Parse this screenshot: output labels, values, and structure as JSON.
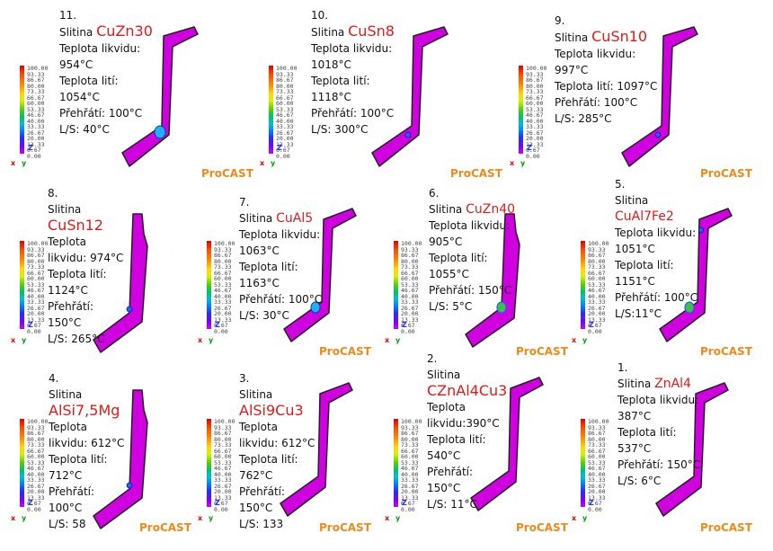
{
  "brand": "ProCAST",
  "ticks": [
    "100.00",
    "93.33",
    "86.67",
    "80.00",
    "73.33",
    "66.67",
    "60.00",
    "53.33",
    "46.67",
    "40.00",
    "33.33",
    "26.67",
    "20.00",
    "13.33",
    "6.67",
    "0.00"
  ],
  "axes": {
    "z": "Z",
    "x": "x",
    "y": "y"
  },
  "labels": {
    "slitina": "Slitina",
    "teplota": "Teplota",
    "likvidu": "likvidu:",
    "teplota_likvidu": "Teplota likvidu:",
    "teplota_liti": "Teplota lití:",
    "prehrati": "Přehřátí:"
  },
  "panels": [
    {
      "num": "11.",
      "alloy": "CuZn30",
      "liquidus": "954°C",
      "pour": "1054°C",
      "superheat": "100°C",
      "ls": "L/S: 40°C"
    },
    {
      "num": "10.",
      "alloy": "CuSn8",
      "liquidus": "1018°C",
      "pour": "1118°C",
      "superheat": "100°C",
      "ls": "L/S: 300°C"
    },
    {
      "num": "9.",
      "alloy": "CuSn10",
      "liquidus": "997°C",
      "pour": "1097°C",
      "superheat": "100°C",
      "ls": "L/S: 285°C"
    },
    {
      "num": "8.",
      "alloy": "CuSn12",
      "liquidus": "974°C",
      "pour": "1124°C",
      "superheat": "150°C",
      "ls": "L/S: 265°C"
    },
    {
      "num": "7.",
      "alloy": "CuAl5",
      "liquidus": "1063°C",
      "pour": "1163°C",
      "superheat": "100°C",
      "ls": "L/S: 30°C"
    },
    {
      "num": "6.",
      "alloy": "CuZn40",
      "liquidus": "905°C",
      "pour": "1055°C",
      "superheat": "150°C",
      "ls": "L/S: 5°C"
    },
    {
      "num": "5.",
      "alloy": "CuAl7Fe2",
      "liquidus": "1051°C",
      "pour": "1151°C",
      "superheat": "100°C",
      "ls": "L/S:11°C"
    },
    {
      "num": "4.",
      "alloy": "AlSi7,5Mg",
      "liquidus": "612°C",
      "pour": "712°C",
      "superheat": "100°C",
      "ls": "L/S: 58"
    },
    {
      "num": "3.",
      "alloy": "AlSi9Cu3",
      "liquidus": "612°C",
      "pour": "762°C",
      "superheat": "150°C",
      "ls": "L/S: 133"
    },
    {
      "num": "2.",
      "alloy": "CZnAl4Cu3",
      "liquidus": "390°C",
      "pour": "540°C",
      "superheat": "150°C",
      "ls": "L/S: 11°C"
    },
    {
      "num": "1.",
      "alloy": "ZnAl4",
      "liquidus": "387°C",
      "pour": "537°C",
      "superheat": "150°C",
      "ls": "L/S: 6°C"
    }
  ]
}
